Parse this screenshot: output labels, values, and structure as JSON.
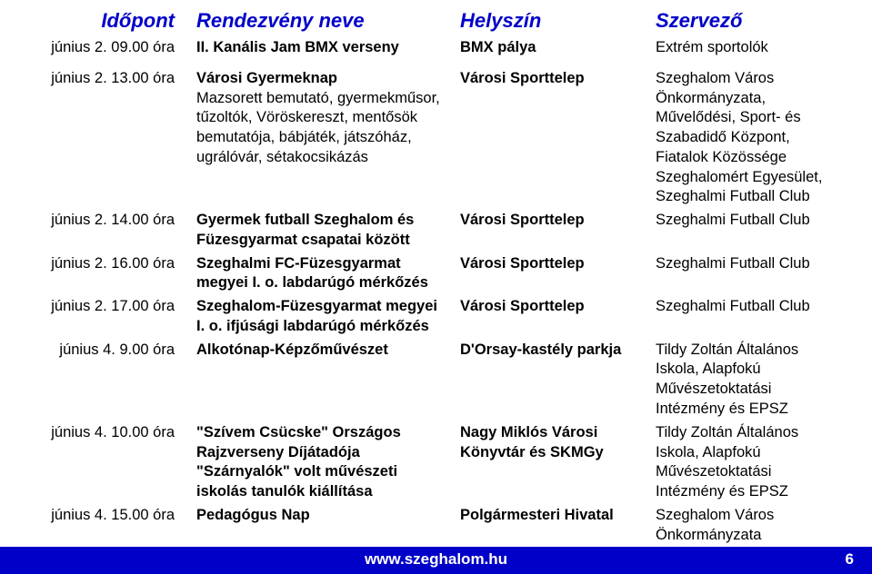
{
  "colors": {
    "header_text": "#0000c8",
    "footer_bg": "#0000c8",
    "footer_text": "#ffffff",
    "body_text": "#000000",
    "bg": "#ffffff"
  },
  "columns": [
    "Időpont",
    "Rendezvény neve",
    "Helyszín",
    "Szervező"
  ],
  "rows": [
    {
      "time": "június 2. 09.00 óra",
      "name": "II. Kanális Jam BMX verseny",
      "loc": "BMX pálya",
      "org": "Extrém sportolók",
      "gap_after": true
    },
    {
      "time": "június 2. 13.00 óra",
      "name": "Városi Gyermeknap\nMazsorett bemutató, gyermekműsor, tűzoltók, Vöröskereszt, mentősök bemutatója, bábjáték, játszóház, ugrálóvár, sétakocsikázás",
      "name_first_bold": "Városi Gyermeknap",
      "loc": "Városi Sporttelep",
      "org": "Szeghalom Város Önkormányzata, Művelődési, Sport- és Szabadidő Központ, Fiatalok Közössége Szeghalomért Egyesület, Szeghalmi Futball Club"
    },
    {
      "time": "június 2. 14.00 óra",
      "name": "Gyermek futball Szeghalom és Füzesgyarmat csapatai között",
      "loc": "Városi Sporttelep",
      "org": "Szeghalmi Futball Club"
    },
    {
      "time": "június 2. 16.00 óra",
      "name": "Szeghalmi FC-Füzesgyarmat megyei I. o. labdarúgó mérkőzés",
      "loc": "Városi Sporttelep",
      "org": "Szeghalmi Futball Club"
    },
    {
      "time": "június 2. 17.00 óra",
      "name": "Szeghalom-Füzesgyarmat megyei I. o. ifjúsági labdarúgó mérkőzés",
      "loc": "Városi Sporttelep",
      "org": "Szeghalmi Futball Club"
    },
    {
      "time": "június 4. 9.00 óra",
      "name": "Alkotónap-Képzőművészet",
      "loc": "D'Orsay-kastély parkja",
      "org": "Tildy Zoltán Általános Iskola, Alapfokú Művészetoktatási Intézmény és EPSZ"
    },
    {
      "time": "június 4. 10.00 óra",
      "name": "\"Szívem Csücske\" Országos Rajzverseny Díjátadója \"Szárnyalók\" volt  művészeti iskolás tanulók kiállítása",
      "loc": "Nagy Miklós Városi Könyvtár és SKMGy",
      "org": "Tildy Zoltán Általános Iskola, Alapfokú Művészetoktatási Intézmény és EPSZ"
    },
    {
      "time": "június 4. 15.00 óra",
      "name": "Pedagógus Nap",
      "loc": "Polgármesteri Hivatal",
      "org": "Szeghalom Város Önkormányzata"
    }
  ],
  "footer": {
    "url": "www.szeghalom.hu",
    "page": "6"
  }
}
